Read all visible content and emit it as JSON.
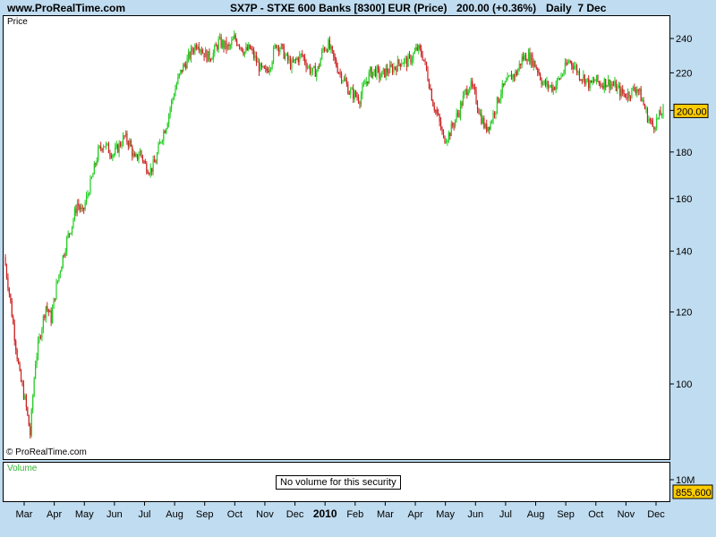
{
  "header": {
    "site": "www.ProRealTime.com",
    "title": "SX7P - STXE 600 Banks [8300] EUR (Price)",
    "change": "200.00 (+0.36%)",
    "period": "Daily  7 Dec"
  },
  "panels": {
    "price_label": "Price",
    "copyright": "© ProRealTime.com",
    "volume_label": "Volume",
    "no_volume": "No volume for this security",
    "volume_tick": "10M",
    "volume_badge": "855,600"
  },
  "colors": {
    "up": "#22cc22",
    "down": "#cc2222",
    "last_badge": "#ffcc00",
    "background": "#c0dcf0"
  },
  "chart_data": {
    "type": "candlestick",
    "y_scale": "log",
    "y_range": [
      88,
      252
    ],
    "last_value": "200.00",
    "y_ticks": [
      100,
      120,
      140,
      160,
      180,
      200,
      220,
      240
    ],
    "x_ticks": [
      "Mar",
      "Apr",
      "May",
      "Jun",
      "Jul",
      "Aug",
      "Sep",
      "Oct",
      "Nov",
      "Dec",
      "2010",
      "Feb",
      "Mar",
      "Apr",
      "May",
      "Jun",
      "Jul",
      "Aug",
      "Sep",
      "Oct",
      "Nov",
      "Dec"
    ],
    "series_closes": [
      138,
      126,
      113,
      102,
      96,
      88,
      106,
      114,
      122,
      118,
      128,
      136,
      144,
      150,
      158,
      154,
      162,
      170,
      180,
      184,
      181,
      179,
      183,
      187,
      184,
      176,
      180,
      174,
      172,
      176,
      186,
      193,
      204,
      214,
      222,
      227,
      233,
      238,
      232,
      229,
      231,
      238,
      236,
      234,
      240,
      237,
      232,
      234,
      228,
      222,
      220,
      226,
      237,
      234,
      228,
      224,
      228,
      230,
      224,
      220,
      222,
      234,
      236,
      228,
      221,
      216,
      210,
      208,
      206,
      214,
      220,
      221,
      218,
      221,
      222,
      224,
      227,
      226,
      229,
      234,
      230,
      218,
      204,
      196,
      186,
      188,
      194,
      200,
      208,
      214,
      208,
      198,
      191,
      194,
      202,
      210,
      214,
      218,
      220,
      228,
      230,
      227,
      222,
      214,
      213,
      212,
      216,
      221,
      227,
      224,
      219,
      217,
      213,
      216,
      214,
      215,
      214,
      212,
      209,
      208,
      210,
      212,
      205,
      197,
      192,
      196,
      200
    ]
  }
}
